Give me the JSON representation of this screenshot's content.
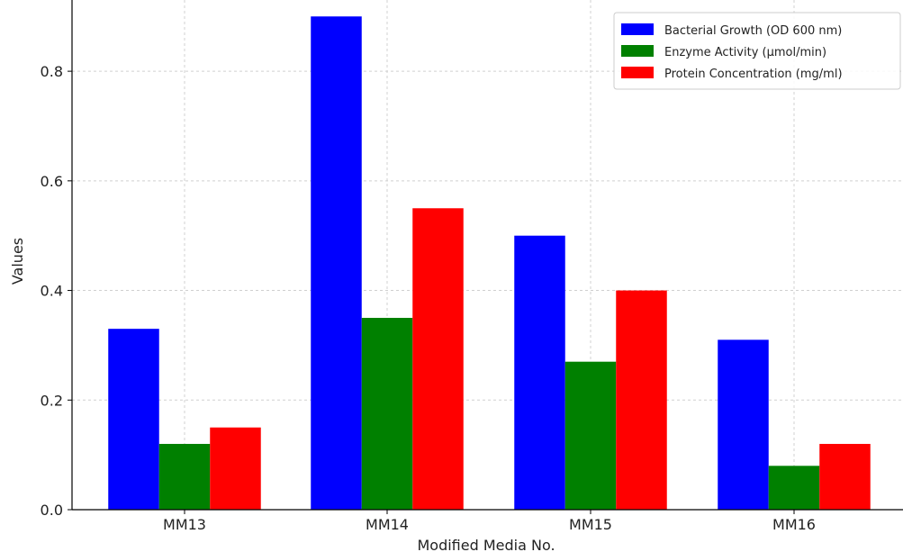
{
  "chart_data": {
    "type": "bar",
    "title": "",
    "xlabel": "Modified Media No.",
    "ylabel": "Values",
    "categories": [
      "MM13",
      "MM14",
      "MM15",
      "MM16"
    ],
    "series": [
      {
        "name": "Bacterial Growth (OD 600 nm)",
        "color": "#0000ff",
        "values": [
          0.33,
          0.9,
          0.5,
          0.31
        ]
      },
      {
        "name": "Enzyme Activity (µmol/min)",
        "color": "#008000",
        "values": [
          0.12,
          0.35,
          0.27,
          0.08
        ]
      },
      {
        "name": "Protein Concentration (mg/ml)",
        "color": "#ff0000",
        "values": [
          0.15,
          0.55,
          0.4,
          0.12
        ]
      }
    ],
    "ylim": [
      0,
      0.93
    ],
    "yticks": [
      0.0,
      0.2,
      0.4,
      0.6,
      0.8
    ],
    "ytick_labels": [
      "0.0",
      "0.2",
      "0.4",
      "0.6",
      "0.8"
    ],
    "grid": true,
    "legend_position": "top-right"
  }
}
